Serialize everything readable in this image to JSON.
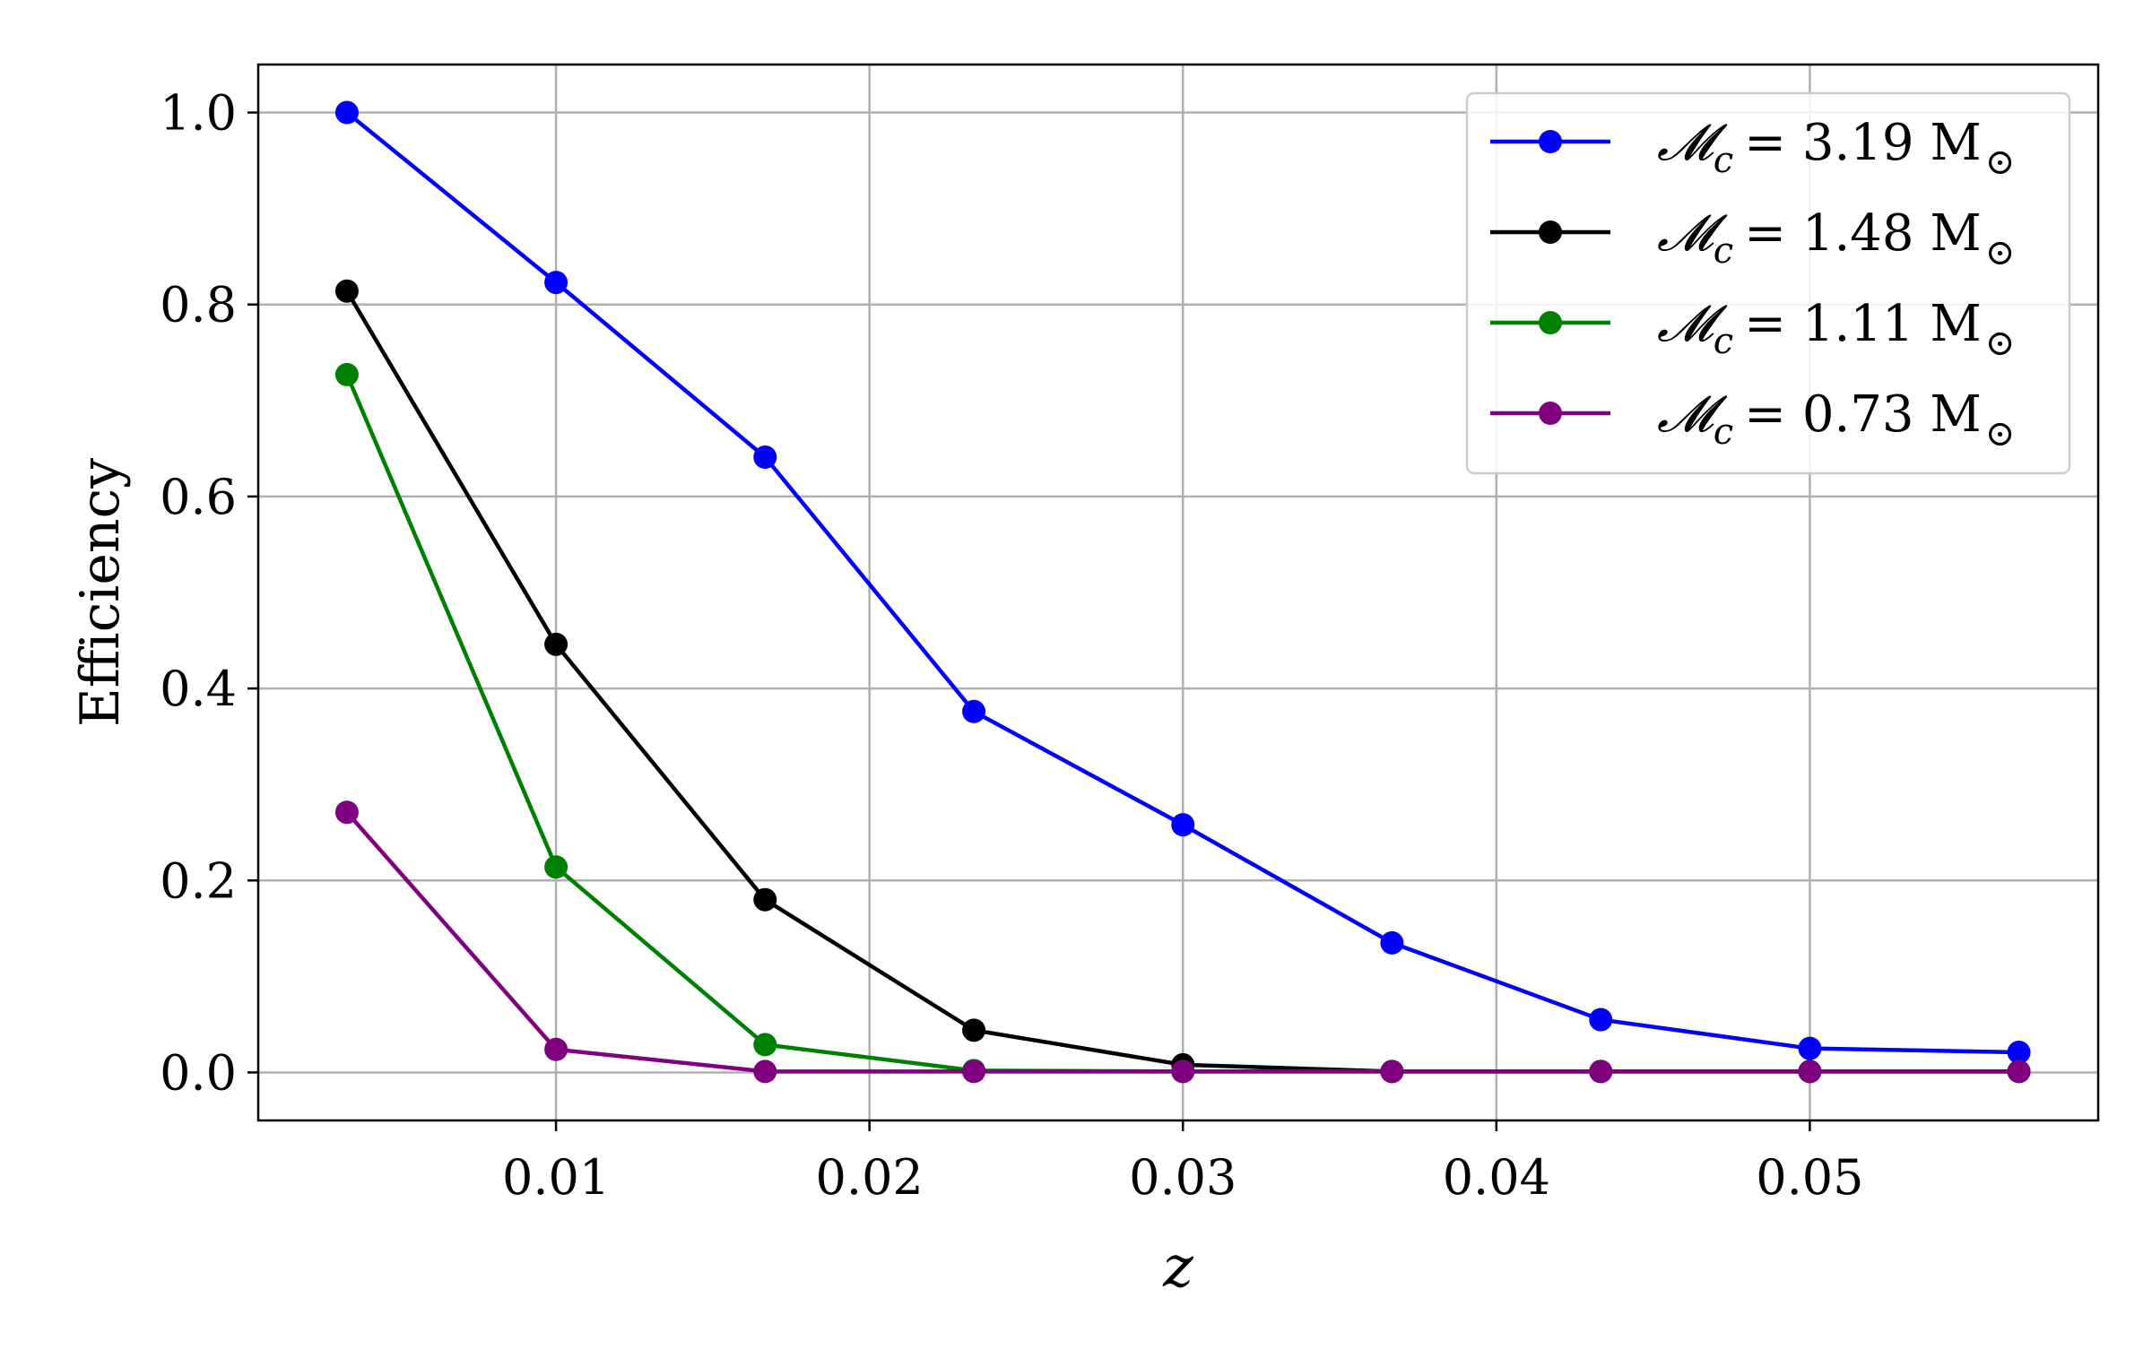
{
  "chart_data": {
    "type": "line",
    "xlabel": "z",
    "ylabel": "Efficiency",
    "title": "",
    "xlim": [
      0.0005,
      0.0592
    ],
    "ylim": [
      -0.05,
      1.05
    ],
    "x_ticks": [
      0.01,
      0.02,
      0.03,
      0.04,
      0.05
    ],
    "x_tick_labels": [
      "0.01",
      "0.02",
      "0.03",
      "0.04",
      "0.05"
    ],
    "y_ticks": [
      0.0,
      0.2,
      0.4,
      0.6,
      0.8,
      1.0
    ],
    "y_tick_labels": [
      "0.0",
      "0.2",
      "0.4",
      "0.6",
      "0.8",
      "1.0"
    ],
    "grid": true,
    "legend_position": "top-right",
    "x": [
      0.00333,
      0.01,
      0.01667,
      0.02333,
      0.03,
      0.03667,
      0.04333,
      0.05,
      0.05667
    ],
    "series": [
      {
        "name": "𝓜c = 3.19 M⊙",
        "legend": {
          "symbol": "𝓜",
          "subscript": "c",
          "eq": "= 3.19 M",
          "sun": "⊙"
        },
        "color": "#0000ff",
        "values": [
          1.0,
          0.823,
          0.641,
          0.376,
          0.258,
          0.135,
          0.055,
          0.025,
          0.021
        ]
      },
      {
        "name": "𝓜c = 1.48 M⊙",
        "legend": {
          "symbol": "𝓜",
          "subscript": "c",
          "eq": "= 1.48 M",
          "sun": "⊙"
        },
        "color": "#000000",
        "values": [
          0.814,
          0.446,
          0.18,
          0.044,
          0.008,
          0.001,
          0.001,
          0.001,
          0.001
        ]
      },
      {
        "name": "𝓜c = 1.11 M⊙",
        "legend": {
          "symbol": "𝓜",
          "subscript": "c",
          "eq": "= 1.11 M",
          "sun": "⊙"
        },
        "color": "#008000",
        "values": [
          0.727,
          0.214,
          0.029,
          0.002,
          0.001,
          0.001,
          0.001,
          0.001,
          0.001
        ]
      },
      {
        "name": "𝓜c = 0.73 M⊙",
        "legend": {
          "symbol": "𝓜",
          "subscript": "c",
          "eq": "= 0.73 M",
          "sun": "⊙"
        },
        "color": "#800080",
        "values": [
          0.271,
          0.024,
          0.001,
          0.001,
          0.001,
          0.001,
          0.001,
          0.001,
          0.001
        ]
      }
    ]
  }
}
